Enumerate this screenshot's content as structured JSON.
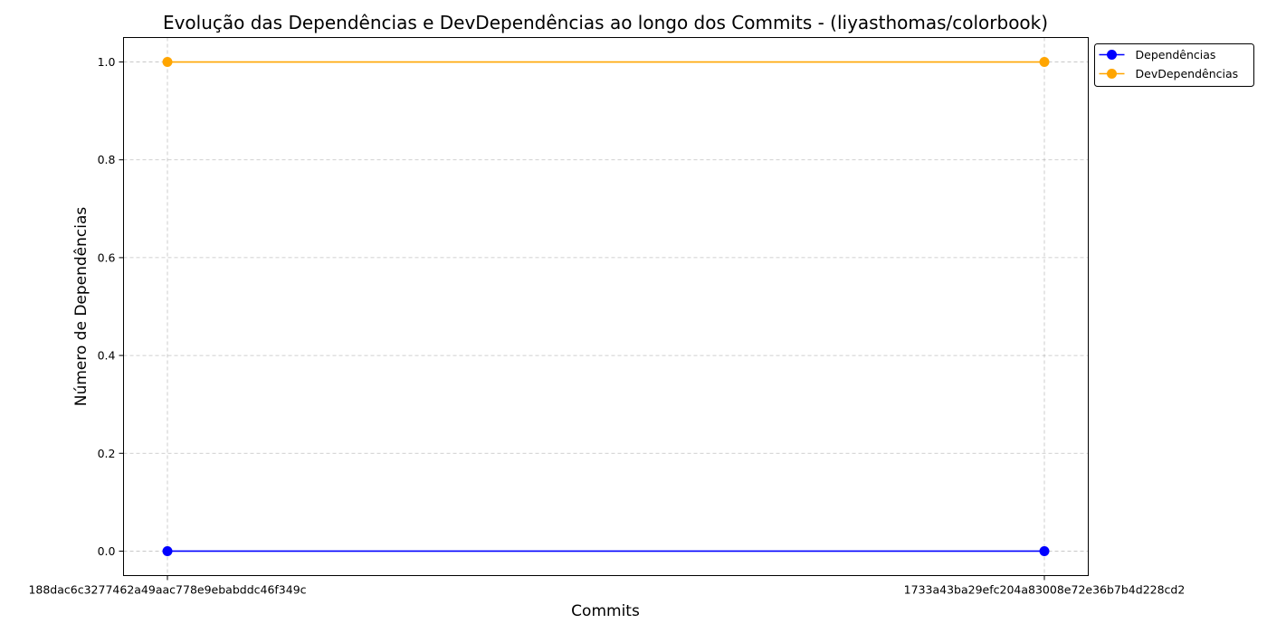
{
  "chart_data": {
    "type": "line",
    "title": "Evolução das Dependências e DevDependências ao longo dos Commits - (liyasthomas/colorbook)",
    "xlabel": "Commits",
    "ylabel": "Número de Dependências",
    "categories": [
      "188dac6c3277462a49aac778e9ebabddc46f349c",
      "1733a43ba29efc204a83008e72e36b7b4d228cd2"
    ],
    "series": [
      {
        "name": "Dependências",
        "values": [
          0,
          0
        ],
        "color": "#0000ff"
      },
      {
        "name": "DevDependências",
        "values": [
          1,
          1
        ],
        "color": "#ffa500"
      }
    ],
    "ylim": [
      -0.05,
      1.05
    ],
    "yticks": [
      "0.0",
      "0.2",
      "0.4",
      "0.6",
      "0.8",
      "1.0"
    ],
    "grid": true,
    "legend_position": "outside-top-right",
    "marker": "circle"
  }
}
